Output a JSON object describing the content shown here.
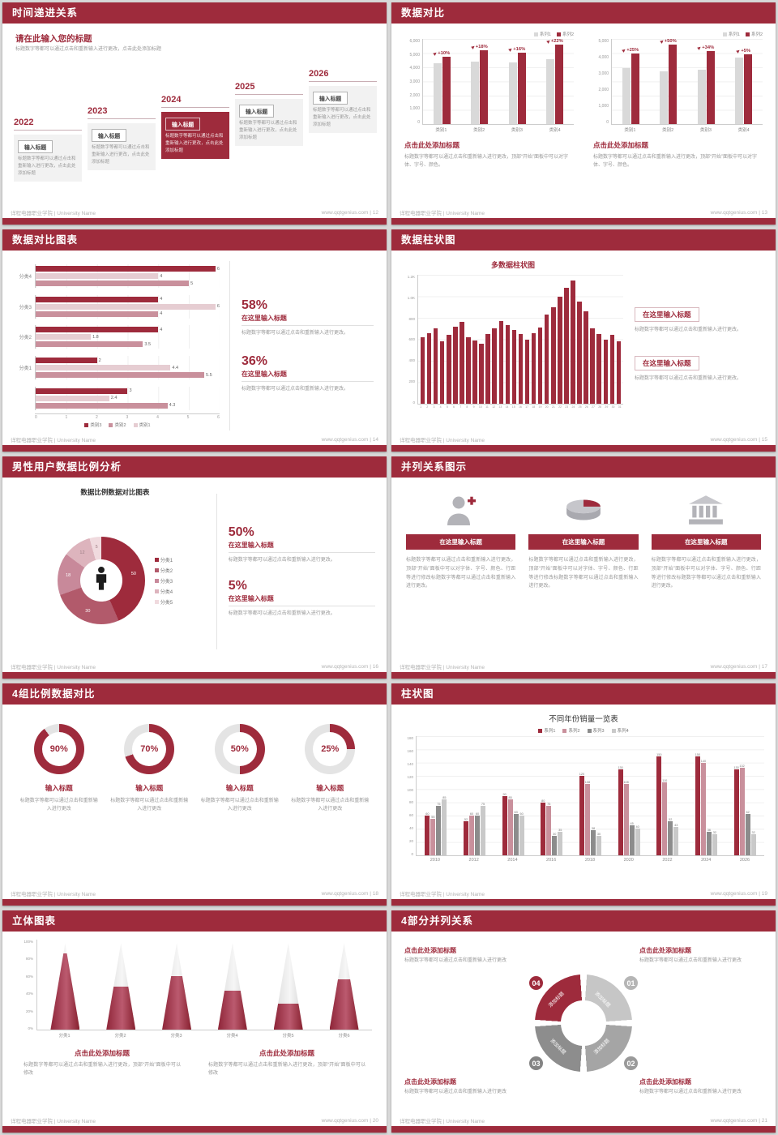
{
  "theme": {
    "accent": "#9e2b3c",
    "background": "#d8d8d8",
    "bar_gray": "#d9d9d9",
    "bar_pink": "#c9909c",
    "bar_light": "#e6cdd2"
  },
  "footer": {
    "left": "详程电器职业学院 | University Name"
  },
  "slides": {
    "s12": {
      "title": "时间递进关系",
      "footer_right": "www.qqtgenius.com | 12",
      "heading": "请在此输入您的标题",
      "heading_desc": "标题数字等都可以通过点击和重新输入进行更改，点击此处添加标题",
      "items": [
        {
          "year": "2022",
          "label": "输入标题",
          "desc": "标题数字等都可以通过点击和重新输入进行更改，点击此处添加标题"
        },
        {
          "year": "2023",
          "label": "输入标题",
          "desc": "标题数字等都可以通过点击和重新输入进行更改，点击此处添加标题"
        },
        {
          "year": "2024",
          "label": "输入标题",
          "desc": "标题数字等都可以通过点击和重新输入进行更改，点击此处添加标题"
        },
        {
          "year": "2025",
          "label": "输入标题",
          "desc": "标题数字等都可以通过点击和重新输入进行更改，点击此处添加标题"
        },
        {
          "year": "2026",
          "label": "输入标题",
          "desc": "标题数字等都可以通过点击和重新输入进行更改，点击此处添加标题"
        }
      ]
    },
    "s13": {
      "title": "数据对比",
      "footer_right": "www.qqtgenius.com | 13",
      "cap_title": "点击此处添加标题",
      "cap_desc": "标题数字等都可以通过点击和重新输入进行更改，顶部“开始”面板中可以对字体、字号、颜色。",
      "chart_left": {
        "type": "bar",
        "ymax": 6000,
        "yticks": [
          "6,000",
          "5,000",
          "4,000",
          "3,000",
          "2,000",
          "1,000",
          "0"
        ],
        "categories": [
          "类别1",
          "类别2",
          "类别3",
          "类别4"
        ],
        "pct": [
          "+10%",
          "+18%",
          "+16%",
          "+22%"
        ],
        "series": [
          {
            "name": "系列1",
            "color": "#d9d9d9",
            "values": [
              4300,
              4400,
              4350,
              4600
            ]
          },
          {
            "name": "系列2",
            "color": "#9e2b3c",
            "values": [
              4750,
              5200,
              5050,
              5600
            ]
          }
        ]
      },
      "chart_right": {
        "type": "bar",
        "ymax": 5000,
        "yticks": [
          "5,000",
          "4,000",
          "3,000",
          "2,000",
          "1,000",
          "0"
        ],
        "categories": [
          "类别1",
          "类别2",
          "类别3",
          "类别4"
        ],
        "pct": [
          "+25%",
          "+50%",
          "+34%",
          "+5%"
        ],
        "series": [
          {
            "name": "系列1",
            "color": "#d9d9d9",
            "values": [
              3300,
              3100,
              3200,
              3900
            ]
          },
          {
            "name": "系列2",
            "color": "#9e2b3c",
            "values": [
              4150,
              4650,
              4300,
              4100
            ]
          }
        ]
      }
    },
    "s14": {
      "title": "数据对比图表",
      "footer_right": "www.qqtgenius.com | 14",
      "chart": {
        "type": "bar-horizontal",
        "xmax": 6,
        "xticks": [
          "0",
          "1",
          "2",
          "3",
          "4",
          "5",
          "6"
        ],
        "legend": [
          {
            "name": "类别3",
            "color": "#9e2b3c"
          },
          {
            "name": "类别2",
            "color": "#c9909c"
          },
          {
            "name": "类别1",
            "color": "#e6cdd2"
          }
        ],
        "groups": [
          {
            "label": "分类4",
            "values": [
              6,
              4,
              5
            ]
          },
          {
            "label": "分类3",
            "values": [
              4,
              6,
              4
            ]
          },
          {
            "label": "分类2",
            "values": [
              4,
              1.8,
              3.5
            ]
          },
          {
            "label": "分类1",
            "values": [
              2,
              4.4,
              5.5
            ]
          },
          {
            "label": "",
            "values": [
              3,
              2.4,
              4.3
            ]
          }
        ]
      },
      "stats": [
        {
          "pct": "58%",
          "label": "在这里输入标题",
          "desc": "标题数字等都可以通过点击和重新输入进行更改。"
        },
        {
          "pct": "36%",
          "label": "在这里输入标题",
          "desc": "标题数字等都可以通过点击和重新输入进行更改。"
        }
      ]
    },
    "s15": {
      "title": "数据柱状图",
      "footer_right": "www.qqtgenius.com | 15",
      "chart_title": "多数据柱状图",
      "chart": {
        "type": "bar",
        "ymax": 1200,
        "yticks": [
          "1.2K",
          "1.0K",
          "800",
          "600",
          "400",
          "200",
          "0"
        ],
        "xlabels": [
          "1",
          "2",
          "3",
          "4",
          "5",
          "6",
          "7",
          "8",
          "9",
          "10",
          "11",
          "12",
          "13",
          "14",
          "15",
          "16",
          "17",
          "18",
          "19",
          "20",
          "21",
          "22",
          "23",
          "24",
          "25",
          "26",
          "27",
          "28",
          "29",
          "30",
          "31"
        ],
        "values": [
          620,
          660,
          700,
          580,
          640,
          720,
          760,
          620,
          590,
          560,
          650,
          700,
          770,
          730,
          690,
          650,
          600,
          660,
          710,
          830,
          900,
          1000,
          1080,
          1150,
          950,
          860,
          700,
          650,
          600,
          640,
          580
        ]
      },
      "blocks": [
        {
          "label": "在这里输入标题",
          "desc": "标题数字等都可以通过点击和重新输入进行更改。"
        },
        {
          "label": "在这里输入标题",
          "desc": "标题数字等都可以通过点击和重新输入进行更改。"
        }
      ]
    },
    "s16": {
      "title": "男性用户数据比例分析",
      "footer_right": "www.qqtgenius.com | 16",
      "chart_title": "数据比例数据对比图表",
      "chart": {
        "type": "pie",
        "values": [
          50,
          30,
          18,
          12,
          5
        ],
        "labels": [
          "50",
          "30",
          "18",
          "12",
          "5"
        ],
        "colors": [
          "#9e2b3c",
          "#b25a6b",
          "#c8899a",
          "#ddb4bd",
          "#f0dade"
        ],
        "legend": [
          {
            "name": "分类1",
            "color": "#9e2b3c"
          },
          {
            "name": "分类2",
            "color": "#b25a6b"
          },
          {
            "name": "分类3",
            "color": "#c8899a"
          },
          {
            "name": "分类4",
            "color": "#ddb4bd"
          },
          {
            "name": "分类5",
            "color": "#f0dade"
          }
        ]
      },
      "stats": [
        {
          "pct": "50%",
          "label": "在这里输入标题",
          "desc": "标题数字等都可以通过点击和重新输入进行更改。"
        },
        {
          "pct": "5%",
          "label": "在这里输入标题",
          "desc": "标题数字等都可以通过点击和重新输入进行更改。"
        }
      ]
    },
    "s17": {
      "title": "并列关系图示",
      "footer_right": "www.qqtgenius.com | 17",
      "cols": [
        {
          "icon": "nurse-icon",
          "label": "在这里输入标题",
          "desc": "标题数字等都可以通过点击和重新输入进行更改，顶部“开始”面板中可以对字体、字号、颜色、行距等进行修改标题数字等都可以通过点击和重新输入进行更改。"
        },
        {
          "icon": "pie-3d-icon",
          "label": "在这里输入标题",
          "desc": "标题数字等都可以通过点击和重新输入进行更改，顶部“开始”面板中可以对字体、字号、颜色、行距等进行修改标题数字等都可以通过点击和重新输入进行更改。"
        },
        {
          "icon": "building-icon",
          "label": "在这里输入标题",
          "desc": "标题数字等都可以通过点击和重新输入进行更改，顶部“开始”面板中可以对字体、字号、颜色、行距等进行修改标题数字等都可以通过点击和重新输入进行更改。"
        }
      ]
    },
    "s18": {
      "title": "4组比例数据对比",
      "footer_right": "www.qqtgenius.com | 18",
      "items": [
        {
          "pct": 90,
          "pct_label": "90%",
          "label": "输入标题",
          "desc": "标题数字等都可以通过点击和重新输入进行更改"
        },
        {
          "pct": 70,
          "pct_label": "70%",
          "label": "输入标题",
          "desc": "标题数字等都可以通过点击和重新输入进行更改"
        },
        {
          "pct": 50,
          "pct_label": "50%",
          "label": "输入标题",
          "desc": "标题数字等都可以通过点击和重新输入进行更改"
        },
        {
          "pct": 25,
          "pct_label": "25%",
          "label": "输入标题",
          "desc": "标题数字等都可以通过点击和重新输入进行更改"
        }
      ]
    },
    "s19": {
      "title": "柱状图",
      "footer_right": "www.qqtgenius.com | 19",
      "chart_title": "不同年份销量一览表",
      "chart": {
        "type": "bar",
        "ymax": 180,
        "yticks": [
          "180",
          "160",
          "140",
          "120",
          "100",
          "80",
          "60",
          "40",
          "20",
          "0"
        ],
        "categories": [
          "2010",
          "2012",
          "2014",
          "2016",
          "2018",
          "2020",
          "2022",
          "2024",
          "2026"
        ],
        "series": [
          {
            "name": "系列1",
            "color": "#9e2b3c",
            "values": [
              60,
              52,
              90,
              80,
              120,
              130,
              150,
              150,
              130
            ]
          },
          {
            "name": "系列2",
            "color": "#c9909c",
            "values": [
              55,
              60,
              85,
              75,
              108,
              108,
              110,
              140,
              132
            ]
          },
          {
            "name": "系列3",
            "color": "#8c8c8c",
            "values": [
              75,
              60,
              63,
              30,
              38,
              45,
              52,
              36,
              62
            ]
          },
          {
            "name": "系列4",
            "color": "#c9c9c9",
            "values": [
              85,
              75,
              60,
              35,
              30,
              40,
              43,
              32,
              32
            ]
          }
        ]
      }
    },
    "s20": {
      "title": "立体图表",
      "footer_right": "www.qqtgenius.com | 20",
      "chart": {
        "type": "cone",
        "yticks": [
          "100%",
          "80%",
          "60%",
          "40%",
          "20%",
          "0%"
        ],
        "items": [
          {
            "label": "分类1",
            "pct": 88
          },
          {
            "label": "分类2",
            "pct": 50
          },
          {
            "label": "分类3",
            "pct": 62
          },
          {
            "label": "分类4",
            "pct": 45
          },
          {
            "label": "分类5",
            "pct": 30
          },
          {
            "label": "分类6",
            "pct": 58
          }
        ]
      },
      "blocks": [
        {
          "title": "点击此处添加标题",
          "desc": "标题数字等都可以通过点击和重新输入进行更改，顶部“开始”面板中可以修改"
        },
        {
          "title": "点击此处添加标题",
          "desc": "标题数字等都可以通过点击和重新输入进行更改，顶部“开始”面板中可以修改"
        }
      ]
    },
    "s21": {
      "title": "4部分并列关系",
      "footer_right": "www.qqtgenius.com | 21",
      "ring": {
        "colors": [
          "#c6c6c6",
          "#a5a5a5",
          "#8d8d8d",
          "#9e2b3c"
        ],
        "seg_label": "添加标题",
        "nums": [
          {
            "n": "01"
          },
          {
            "n": "02"
          },
          {
            "n": "03"
          },
          {
            "n": "04"
          }
        ]
      },
      "blocks": [
        {
          "title": "点击此处添加标题",
          "desc": "标题数字等都可以通过点击和重新输入进行更改"
        },
        {
          "title": "点击此处添加标题",
          "desc": "标题数字等都可以通过点击和重新输入进行更改"
        },
        {
          "title": "点击此处添加标题",
          "desc": "标题数字等都可以通过点击和重新输入进行更改"
        },
        {
          "title": "点击此处添加标题",
          "desc": "标题数字等都可以通过点击和重新输入进行更改"
        }
      ]
    }
  }
}
